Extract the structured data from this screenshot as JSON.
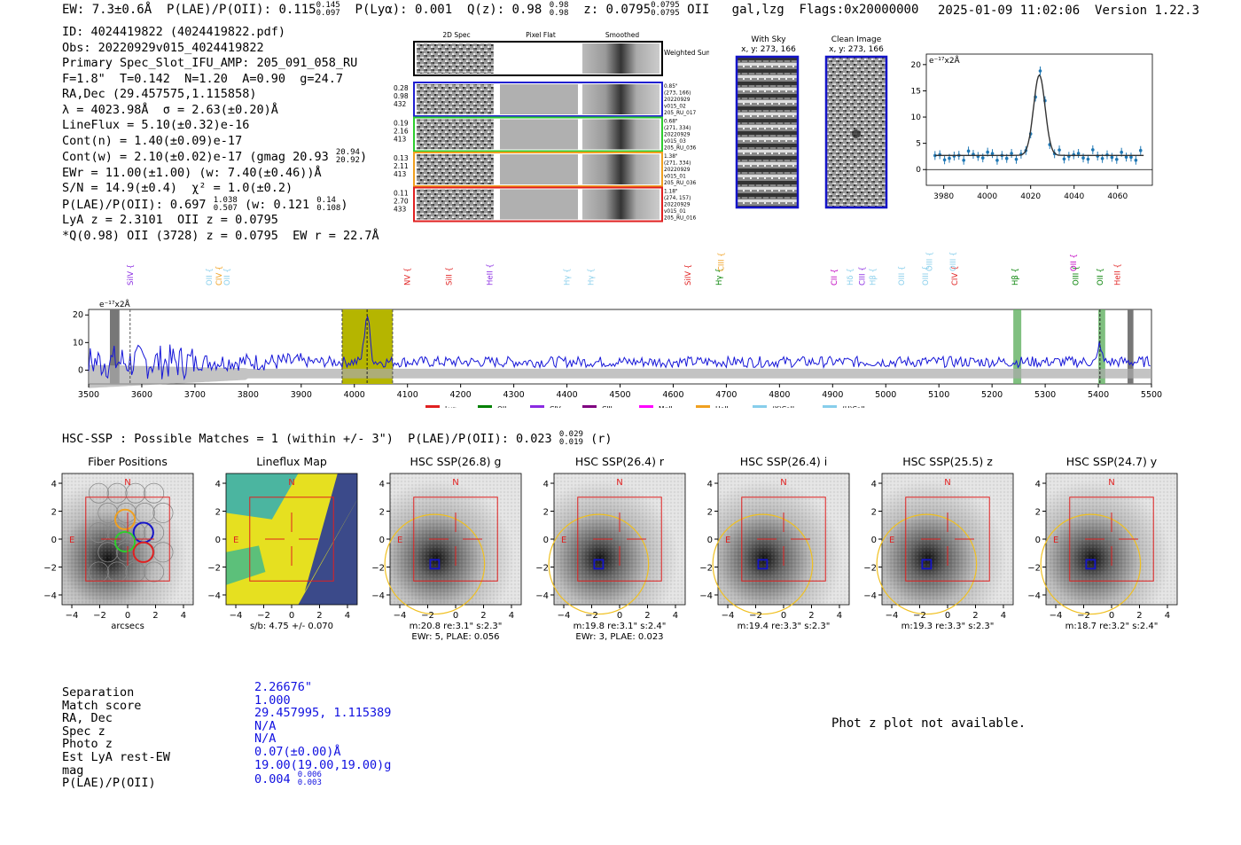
{
  "header": {
    "ew": "EW: 7.3±0.6Å",
    "plae_label": "P(LAE)/P(OII): 0.115",
    "plae_hi": "0.145",
    "plae_lo": "0.097",
    "plya": "P(Lyα): 0.001",
    "qz": "Q(z): 0.98",
    "qz_hi": "0.98",
    "qz_lo": "0.98",
    "z": "z: 0.0795",
    "z_hi": "0.0795",
    "z_lo": "0.0795",
    "z_line": "OII",
    "type": "gal,lzg",
    "flags": "Flags:0x20000000",
    "datetime": "2025-01-09 11:02:06",
    "version": "Version 1.22.3"
  },
  "info": {
    "id": "ID: 4024419822 (4024419822.pdf)",
    "obs": "Obs: 20220929v015_4024419822",
    "primary": "Primary Spec_Slot_IFU_AMP: 205_091_058_RU",
    "params": "F=1.8\"  T=0.142  N=1.20  A=0.90  g=24.7",
    "radec": "RA,Dec (29.457575,1.115858)",
    "lambda": "λ = 4023.98Å  σ = 2.63(±0.20)Å",
    "lineflux": "LineFlux = 5.10(±0.32)e-16",
    "contn": "Cont(n) = 1.40(±0.09)e-17",
    "contw": "Cont(w) = 2.10(±0.02)e-17 (gmag 20.93",
    "contw_hi": "20.94",
    "contw_lo": "20.92",
    "ewr": "EWr = 11.00(±1.00) (w: 7.40(±0.46))Å",
    "sn": "S/N = 14.9(±0.4)  χ² = 1.0(±0.2)",
    "plae": "P(LAE)/P(OII): 0.697",
    "plae_hi": "1.038",
    "plae_lo": "0.507",
    "plae_w": "(w: 0.121",
    "plae_w_hi": "0.14",
    "plae_w_lo": "0.108",
    "lya": "LyA z = 2.3101  OII z = 0.0795",
    "qline": "*Q(0.98) OII (3728) z = 0.0795  EW r = 22.7Å"
  },
  "cutouts": {
    "col_2d": "2D Spec",
    "col_flat": "Pixel Flat",
    "col_smooth": "Smoothed",
    "weighted": "Weighted Sum",
    "rows": [
      {
        "left": [
          "0.28",
          "0.98",
          "432"
        ],
        "right": [
          "0.85\"",
          "(273, 166)",
          "20220929",
          "v015_02",
          "205_RU_017"
        ],
        "color": "#1f1fd0"
      },
      {
        "left": [
          "0.19",
          "2.16",
          "413"
        ],
        "right": [
          "0.68\"",
          "(271, 334)",
          "20220929",
          "v015_03",
          "205_RU_036"
        ],
        "color": "#2ecc2e"
      },
      {
        "left": [
          "0.13",
          "2.11",
          "413"
        ],
        "right": [
          "1.38\"",
          "(271, 334)",
          "20220929",
          "v015_01",
          "205_RU_036"
        ],
        "color": "#f0a020"
      },
      {
        "left": [
          "0.11",
          "2.70",
          "433"
        ],
        "right": [
          "1.18\"",
          "(274, 157)",
          "20220929",
          "v015_01",
          "205_RU_016"
        ],
        "color": "#e02020"
      }
    ],
    "with_sky": "With Sky",
    "with_sky_xy": "x, y: 273, 166",
    "clean": "Clean Image",
    "clean_xy": "x, y: 273, 166"
  },
  "fit_chart": {
    "unit": "e⁻¹⁷x2Å",
    "xticks": [
      "3980",
      "4000",
      "4020",
      "4040",
      "4060"
    ],
    "yticks": [
      "0",
      "5",
      "10",
      "15",
      "20"
    ]
  },
  "spectrum": {
    "unit": "e⁻¹⁷x2Å",
    "xticks": [
      "3500",
      "3600",
      "3700",
      "3800",
      "3900",
      "4000",
      "4100",
      "4200",
      "4300",
      "4400",
      "4500",
      "4600",
      "4700",
      "4800",
      "4900",
      "5000",
      "5100",
      "5200",
      "5300",
      "5400",
      "5500"
    ],
    "yticks": [
      "20",
      "10",
      "0"
    ],
    "lines": [
      {
        "label": "SiIV",
        "x": 3578,
        "color": "#8a2be2"
      },
      {
        "label": "OII",
        "x": 3727,
        "color": "#87ceeb"
      },
      {
        "label": "CIV",
        "x": 3745,
        "color": "#f0a020"
      },
      {
        "label": "OII",
        "x": 3760,
        "color": "#87ceeb"
      },
      {
        "label": "NV",
        "x": 4100,
        "color": "#e02020"
      },
      {
        "label": "SiII",
        "x": 4178,
        "color": "#e02020"
      },
      {
        "label": "HeII",
        "x": 4255,
        "color": "#8a2be2"
      },
      {
        "label": "Hγ",
        "x": 4400,
        "color": "#87ceeb"
      },
      {
        "label": "Hγ",
        "x": 4445,
        "color": "#87ceeb"
      },
      {
        "label": "SiIV",
        "x": 4628,
        "color": "#e02020"
      },
      {
        "label": "Hγ",
        "x": 4686,
        "color": "#008000"
      },
      {
        "label": "CII",
        "x": 4903,
        "color": "#c000c0"
      },
      {
        "label": "Hδ",
        "x": 4933,
        "color": "#87ceeb"
      },
      {
        "label": "CIII",
        "x": 4955,
        "color": "#8a2be2"
      },
      {
        "label": "Hβ",
        "x": 4975,
        "color": "#87ceeb"
      },
      {
        "label": "OIII",
        "x": 5030,
        "color": "#87ceeb"
      },
      {
        "label": "OIII",
        "x": 5075,
        "color": "#87ceeb"
      },
      {
        "label": "CIV",
        "x": 5130,
        "color": "#e02020"
      },
      {
        "label": "Hβ",
        "x": 5243,
        "color": "#008000"
      },
      {
        "label": "OIII",
        "x": 5357,
        "color": "#008000"
      },
      {
        "label": "OII",
        "x": 5403,
        "color": "#008000"
      },
      {
        "label": "HeII",
        "x": 5436,
        "color": "#e02020"
      }
    ],
    "upper_lines": [
      {
        "label": "CIII",
        "x": 4690,
        "color": "#f0a020"
      },
      {
        "label": "OIII",
        "x": 5082,
        "color": "#87ceeb"
      },
      {
        "label": "OIII",
        "x": 5126,
        "color": "#87ceeb"
      },
      {
        "label": "OII",
        "x": 5353,
        "color": "#c000c0"
      }
    ],
    "legend": [
      {
        "label": "Lyα",
        "color": "#e02020"
      },
      {
        "label": "OII",
        "color": "#008000"
      },
      {
        "label": "CIV",
        "color": "#8a2be2"
      },
      {
        "label": "CIII",
        "color": "#800080"
      },
      {
        "label": "MgII",
        "color": "#ff00ff"
      },
      {
        "label": "HeII",
        "color": "#f0a020"
      },
      {
        "label": "(K)CaII",
        "color": "#87ceeb"
      },
      {
        "label": "(H)CaII",
        "color": "#87ceeb"
      }
    ]
  },
  "hsc": {
    "title": "HSC-SSP : Possible Matches = 1 (within +/- 3\")  P(LAE)/P(OII): 0.023",
    "plae_hi": "0.029",
    "plae_lo": "0.019",
    "plae_band": "(r)",
    "ticks": [
      "-4",
      "-2",
      "0",
      "2",
      "4"
    ],
    "panels": [
      {
        "title": "Fiber Positions",
        "cap1": "arcsecs",
        "cap2": ""
      },
      {
        "title": "Lineflux Map",
        "cap1": "s/b: 4.75 +/- 0.070",
        "cap2": ""
      },
      {
        "title": "HSC SSP(26.8) g",
        "cap1": "m:20.8  re:3.1\"  s:2.3\"",
        "cap2": "EWr: 5, PLAE: 0.056"
      },
      {
        "title": "HSC SSP(26.4) r",
        "cap1": "m:19.8  re:3.1\"  s:2.4\"",
        "cap2": "EWr: 3, PLAE: 0.023"
      },
      {
        "title": "HSC SSP(26.4) i",
        "cap1": "m:19.4  re:3.3\"  s:2.3\"",
        "cap2": ""
      },
      {
        "title": "HSC SSP(25.5) z",
        "cap1": "m:19.3  re:3.3\"  s:2.3\"",
        "cap2": ""
      },
      {
        "title": "HSC SSP(24.7) y",
        "cap1": "m:18.7  re:3.2\"  s:2.4\"",
        "cap2": ""
      }
    ],
    "compass_n": "N",
    "compass_e": "E"
  },
  "match_table": {
    "labels": [
      "Separation",
      "Match score",
      "RA, Dec",
      "Spec z",
      "Photo z",
      "Est LyA rest-EW",
      "mag",
      "P(LAE)/P(OII)"
    ],
    "values": [
      "2.26676\"",
      "1.000",
      "29.457995, 1.115389",
      "N/A",
      "N/A",
      "0.07(±0.00)Å",
      "19.00(19.00,19.00)g",
      "0.004"
    ],
    "plae_hi": "0.006",
    "plae_lo": "0.003"
  },
  "photz": "Phot z plot not available."
}
